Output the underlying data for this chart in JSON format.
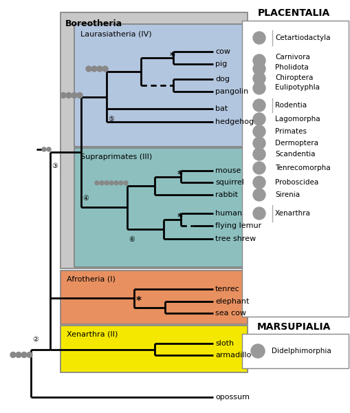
{
  "title_placentalia": "PLACENTALIA",
  "title_marsupialia": "MARSUPIALIA",
  "boreotheria_label": "Boreotheria",
  "laurasiatheria_label": "Laurasiatheria (IV)",
  "supraprimates_label": "Supraprimates (III)",
  "afrotheria_label": "Afrotheria (I)",
  "xenarthra_label": "Xenarthra (II)",
  "laurasiatheria_color": "#b3c6df",
  "supraprimates_color": "#8dbfbf",
  "afrotheria_color": "#e89060",
  "xenarthra_color": "#f5e800",
  "boreotheria_color": "#c8c8c8",
  "background_color": "#ffffff",
  "taxa_laurasiatheria": [
    "cow",
    "pig",
    "dog",
    "pangolin",
    "bat",
    "hedgehog"
  ],
  "taxa_supraprimates": [
    "mouse",
    "squirrel",
    "rabbit",
    "human",
    "flying lemur",
    "tree shrew"
  ],
  "taxa_afrotheria": [
    "tenrec",
    "elephant",
    "sea cow"
  ],
  "taxa_xenarthra": [
    "sloth",
    "armadillo"
  ],
  "legend_placentalia": [
    "Cetartiodactyla",
    "Carnivora",
    "Pholidota",
    "Chiroptera",
    "Eulipotyphla",
    "Rodentia",
    "Lagomorpha",
    "Primates",
    "Dermoptera",
    "Scandentia",
    "Tenrecomorpha",
    "Proboscidea",
    "Sirenia",
    "Xenarthra"
  ],
  "legend_marsupialia": [
    "Didelphimorphia"
  ]
}
